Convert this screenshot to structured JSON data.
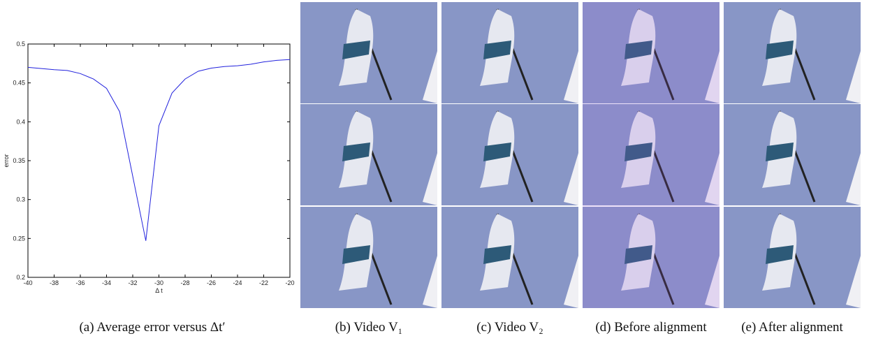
{
  "chart_data": {
    "type": "line",
    "x_label": "Δ t",
    "y_label": "error",
    "x": [
      -40,
      -38,
      -37,
      -36,
      -35,
      -34,
      -33,
      -32,
      -31,
      -30,
      -29,
      -28,
      -27,
      -26,
      -25,
      -24,
      -23,
      -22,
      -21,
      -20
    ],
    "series": [
      {
        "color": "#2222dd",
        "values": [
          0.47,
          0.467,
          0.466,
          0.462,
          0.455,
          0.443,
          0.413,
          0.33,
          0.247,
          0.395,
          0.437,
          0.455,
          0.465,
          0.469,
          0.471,
          0.472,
          0.474,
          0.477,
          0.479,
          0.48
        ]
      }
    ],
    "xlim": [
      -40,
      -20
    ],
    "xticks": [
      -40,
      -38,
      -36,
      -34,
      -32,
      -30,
      -28,
      -26,
      -24,
      -22,
      -20
    ],
    "ylim": [
      0.2,
      0.5
    ],
    "yticks": [
      0.2,
      0.25,
      0.3,
      0.35,
      0.4,
      0.45,
      0.5
    ]
  },
  "captions": [
    "(a) Average error versus Δt′",
    "(b) Video V₁",
    "(c) Video V₂",
    "(d) Before alignment",
    "(e) After alignment"
  ]
}
